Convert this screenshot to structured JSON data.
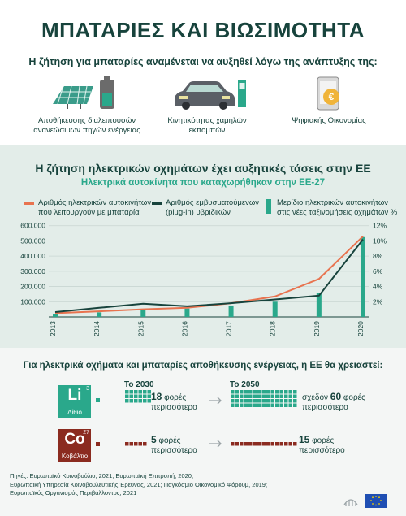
{
  "header": {
    "title": "ΜΠΑΤΑΡΙΕΣ ΚΑΙ ΒΙΩΣΙΜΟΤΗΤΑ",
    "demand_intro": "Η ζήτηση για μπαταρίες αναμένεται να αυξηθεί λόγω της ανάπτυξης της:"
  },
  "drivers": [
    {
      "icon": "solar-panel-battery-icon",
      "caption_line1": "Αποθήκευσης διαλειπουσών",
      "caption_line2": "ανανεώσιμων πηγών ενέργειας"
    },
    {
      "icon": "electric-car-charger-icon",
      "caption_line1": "Κινητικότητας χαμηλών",
      "caption_line2": "εκπομπών"
    },
    {
      "icon": "smartphone-euro-icon",
      "caption_line1": "Ψηφιακής Οικονομίας",
      "caption_line2": ""
    }
  ],
  "ev_section": {
    "title": "Η ζήτηση ηλεκτρικών οχημάτων έχει αυξητικές τάσεις στην ΕΕ"
  },
  "chart_data": {
    "type": "line",
    "title": "Ηλεκτρικά αυτοκίνητα που καταχωρήθηκαν στην ΕΕ-27",
    "x": [
      "2013",
      "2014",
      "2015",
      "2016",
      "2017",
      "2018",
      "2019",
      "2020"
    ],
    "series": [
      {
        "name_line1": "Αριθμός ηλεκτρικών αυτοκινήτων",
        "name_line2": "που λειτουργούν με μπαταρία",
        "type": "line",
        "axis": "left",
        "color": "#e8734f",
        "values": [
          25000,
          37000,
          50000,
          60000,
          90000,
          135000,
          250000,
          530000
        ]
      },
      {
        "name_line1": "Αριθμός εμβυσματούμενων",
        "name_line2": "(plug-in) υβριδικών",
        "type": "line",
        "axis": "left",
        "color": "#17433c",
        "values": [
          32000,
          60000,
          87000,
          70000,
          90000,
          115000,
          140000,
          510000
        ]
      },
      {
        "name_line1": "Μερίδιο ηλεκτρικών αυτοκινήτων",
        "name_line2": "στις νέες ταξινομήσεις οχημάτων %",
        "type": "bar",
        "axis": "right",
        "color": "#2aa88b",
        "values": [
          0.4,
          0.6,
          1.0,
          1.1,
          1.5,
          2.0,
          3.1,
          10.5
        ]
      }
    ],
    "y_left": {
      "ticks": [
        "100.000",
        "200.000",
        "300.000",
        "400.000",
        "500.000",
        "600.000"
      ],
      "values": [
        100000,
        200000,
        300000,
        400000,
        500000,
        600000
      ],
      "ylim": [
        0,
        620000
      ]
    },
    "y_right": {
      "ticks": [
        "2%",
        "4%",
        "6%",
        "8%",
        "10%",
        "12%"
      ],
      "values": [
        2,
        4,
        6,
        8,
        10,
        12
      ],
      "ylim": [
        0,
        12.4
      ]
    },
    "grid": true,
    "legend_position": "top"
  },
  "materials": {
    "intro": "Για ηλεκτρικά οχήματα και μπαταρίες αποθήκευσης ενέργειας, η ΕΕ θα χρειαστεί:",
    "year_2030": "Το 2030",
    "year_2050": "Το 2050",
    "items": [
      {
        "symbol": "Li",
        "number": "3",
        "name": "Λίθιο",
        "color": "#2aa88b",
        "m2030_prefix": "",
        "m2030_value": "18",
        "m2030_suffix": " φορές",
        "m2030_line2": "περισσότερο",
        "m2050_prefix": "σχεδόν ",
        "m2050_value": "60",
        "m2050_suffix": " φορές",
        "m2050_line2": "περισσότερο",
        "units_2030": 18,
        "units_2050": 60
      },
      {
        "symbol": "Co",
        "number": "27",
        "name": "Κοβάλτιο",
        "color": "#8b2b20",
        "m2030_prefix": "",
        "m2030_value": "5",
        "m2030_suffix": " φορές",
        "m2030_line2": "περισσότερο",
        "m2050_prefix": "",
        "m2050_value": "15",
        "m2050_suffix": " φορές",
        "m2050_line2": "περισσότερο",
        "units_2030": 5,
        "units_2050": 15
      }
    ]
  },
  "sources": [
    "Πηγές: Ευρωπαϊκό Κοινοβούλιο, 2021; Ευρωπαϊκή Επιτροπή, 2020;",
    "Ευρωπαϊκή Υπηρεσία Κοινοβουλευτικής Έρευνας, 2021; Παγκόσμιο Οικονομικό Φόρουμ, 2019;",
    "Ευρωπαϊκός Οργανισμός Περιβάλλοντος, 2021"
  ],
  "colors": {
    "dark": "#17433c",
    "teal": "#2aa88b",
    "orange": "#e8734f",
    "cobalt": "#8b2b20"
  }
}
